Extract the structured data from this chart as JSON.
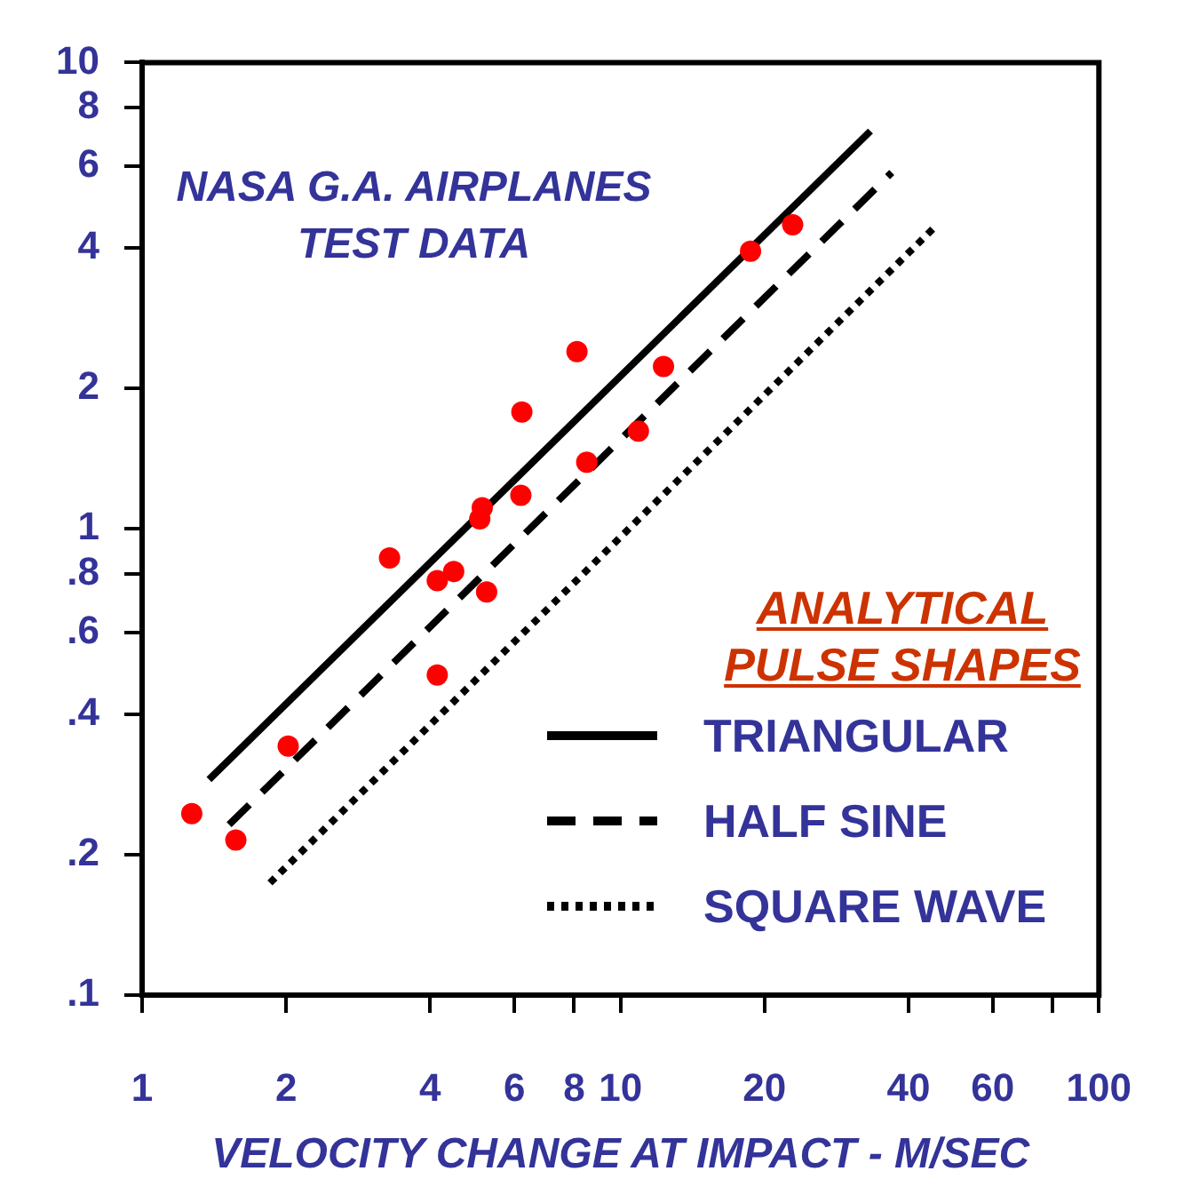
{
  "chart_data": {
    "type": "scatter",
    "xlabel": "VELOCITY CHANGE AT IMPACT - M/SEC",
    "annotations": [
      "NASA G.A. AIRPLANES TEST DATA"
    ],
    "legend_title": "ANALYTICAL PULSE SHAPES",
    "legend": "bottom right",
    "log": "xy",
    "grid": false,
    "xlim": [
      1,
      100
    ],
    "xticks": [
      1,
      2,
      4,
      6,
      8,
      10,
      20,
      40,
      60,
      {
        "value": 80,
        "label": null
      },
      100
    ],
    "ylim": [
      0.1,
      10
    ],
    "yticks": [
      {
        "value": 0.1,
        "label": ".1"
      },
      {
        "value": 0.2,
        "label": ".2"
      },
      {
        "value": 0.4,
        "label": ".4"
      },
      {
        "value": 0.6,
        "label": ".6"
      },
      {
        "value": 0.8,
        "label": ".8"
      },
      1,
      2,
      4,
      6,
      8,
      10
    ],
    "series": [
      {
        "type": "scatter",
        "color": "#ff0000",
        "marker": "circle",
        "x": [
          1.27,
          1.57,
          2.02,
          3.29,
          4.14,
          4.48,
          4.14,
          5.25,
          5.14,
          5.08,
          6.19,
          6.22,
          8.11,
          8.5,
          10.9,
          12.3,
          18.7,
          22.9
        ],
        "values": [
          0.245,
          0.215,
          0.342,
          0.866,
          0.774,
          0.81,
          0.486,
          0.732,
          1.11,
          1.05,
          1.18,
          1.78,
          2.4,
          1.39,
          1.62,
          2.23,
          3.94,
          4.49
        ]
      },
      {
        "type": "line",
        "name": "TRIANGULAR",
        "color": "#000000",
        "line_style": "solid",
        "marker": "none",
        "x": [
          1.38,
          33.3
        ],
        "values": [
          0.29,
          7.13
        ]
      },
      {
        "type": "line",
        "name": "HALF SINE",
        "color": "#000000",
        "line_style": "dashed",
        "marker": "none",
        "x": [
          1.52,
          36.9
        ],
        "values": [
          0.232,
          5.81
        ]
      },
      {
        "type": "line",
        "name": "SQUARE WAVE",
        "color": "#000000",
        "line_style": "dotted",
        "marker": "none",
        "x": [
          1.85,
          45.6
        ],
        "values": [
          0.174,
          4.46
        ]
      }
    ]
  }
}
